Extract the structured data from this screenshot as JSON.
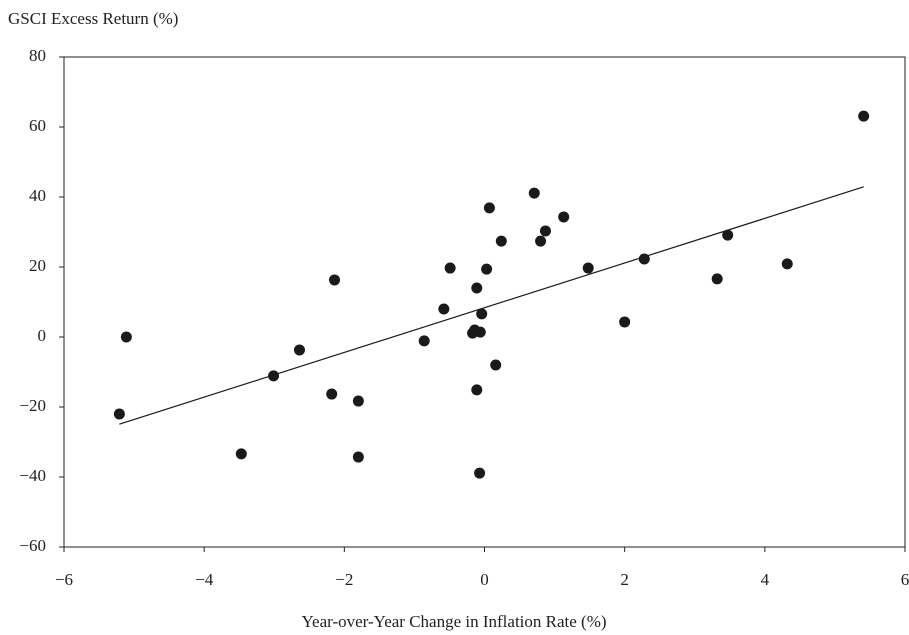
{
  "chart_data": {
    "type": "scatter",
    "ylabel": "GSCI Excess Return (%)",
    "xlabel": "Year-over-Year Change in Inflation Rate (%)",
    "color": "#1a1a1a",
    "grid": false,
    "x": [
      -5.21,
      -5.11,
      -3.47,
      -3.01,
      -2.64,
      -2.18,
      -2.14,
      -1.8,
      -1.8,
      -0.86,
      -0.58,
      -0.49,
      -0.17,
      -0.14,
      -0.11,
      -0.11,
      -0.07,
      -0.04,
      -0.06,
      0.03,
      0.07,
      0.16,
      0.24,
      0.71,
      0.8,
      0.87,
      1.13,
      1.48,
      2.0,
      2.28,
      3.32,
      3.47,
      4.32,
      5.41
    ],
    "values": [
      -22,
      0,
      -33.4,
      -11.1,
      -3.7,
      -16.3,
      16.3,
      -18.3,
      -34.3,
      -1.1,
      8,
      19.7,
      1.1,
      2,
      14,
      -15.1,
      -38.9,
      6.6,
      1.4,
      19.4,
      36.9,
      -8,
      27.4,
      41.1,
      27.4,
      30.3,
      34.3,
      19.7,
      4.3,
      22.3,
      16.6,
      29.1,
      20.9,
      63.1
    ],
    "trendline": {
      "x": [
        -5.21,
        5.41
      ],
      "y": [
        -24.9,
        42.9
      ],
      "color": "#1a1a1a"
    },
    "xlim": [
      -6,
      6
    ],
    "xticks": [
      {
        "value": -6,
        "label": "−6"
      },
      {
        "value": -4,
        "label": "−4"
      },
      {
        "value": -2,
        "label": "−2"
      },
      0,
      2,
      4,
      6
    ],
    "ylim": [
      -60,
      80
    ],
    "yticks": [
      {
        "value": -60,
        "label": "−60"
      },
      {
        "value": -40,
        "label": "−40"
      },
      {
        "value": -20,
        "label": "−20"
      },
      0,
      20,
      40,
      60,
      80
    ]
  }
}
